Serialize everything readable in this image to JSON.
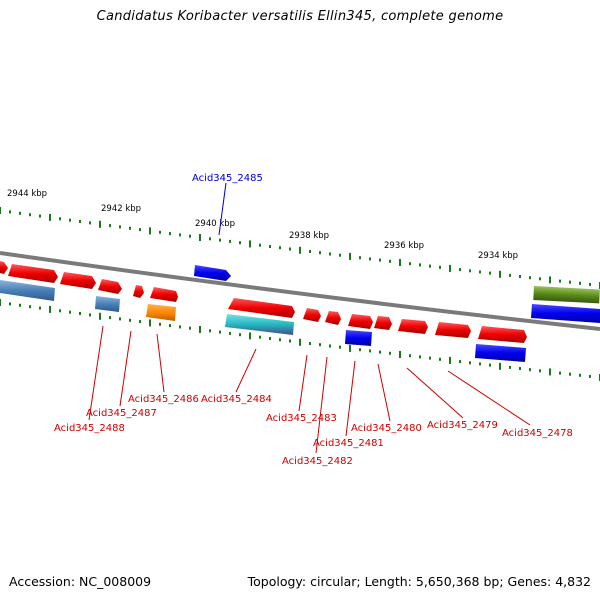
{
  "title": "Candidatus Koribacter versatilis Ellin345, complete genome",
  "accession_text": "Accession: NC_008009",
  "summary_text": "Topology: circular; Length: 5,650,368 bp; Genes: 4,832",
  "colors": {
    "backbone": "#7a7a7a",
    "tick": "#1a7a1a",
    "gene_red": "#ee0000",
    "gene_blue": "#0000ee",
    "gene_steel": "#4a80b8",
    "gene_orange": "#ff8800",
    "gene_teal": "#22b8c0",
    "gene_olive": "#5a8a1a",
    "label_red": "#cc0000",
    "label_blue": "#0000cc"
  },
  "kbp_labels": [
    {
      "id": "kbp-2944",
      "text": "2944 kbp"
    },
    {
      "id": "kbp-2942",
      "text": "2942 kbp"
    },
    {
      "id": "kbp-2940",
      "text": "2940 kbp"
    },
    {
      "id": "kbp-2938",
      "text": "2938 kbp"
    },
    {
      "id": "kbp-2936",
      "text": "2936 kbp"
    },
    {
      "id": "kbp-2934",
      "text": "2934 kbp"
    }
  ],
  "gene_labels": [
    {
      "id": "acid345-2485",
      "text": "Acid345_2485",
      "strand": "forward"
    },
    {
      "id": "acid345-2488",
      "text": "Acid345_2488",
      "strand": "reverse"
    },
    {
      "id": "acid345-2487",
      "text": "Acid345_2487",
      "strand": "reverse"
    },
    {
      "id": "acid345-2486",
      "text": "Acid345_2486",
      "strand": "reverse"
    },
    {
      "id": "acid345-2484",
      "text": "Acid345_2484",
      "strand": "reverse"
    },
    {
      "id": "acid345-2483",
      "text": "Acid345_2483",
      "strand": "reverse"
    },
    {
      "id": "acid345-2482",
      "text": "Acid345_2482",
      "strand": "reverse"
    },
    {
      "id": "acid345-2481",
      "text": "Acid345_2481",
      "strand": "reverse"
    },
    {
      "id": "acid345-2480",
      "text": "Acid345_2480",
      "strand": "reverse"
    },
    {
      "id": "acid345-2479",
      "text": "Acid345_2479",
      "strand": "reverse"
    },
    {
      "id": "acid345-2478",
      "text": "Acid345_2478",
      "strand": "reverse"
    }
  ]
}
